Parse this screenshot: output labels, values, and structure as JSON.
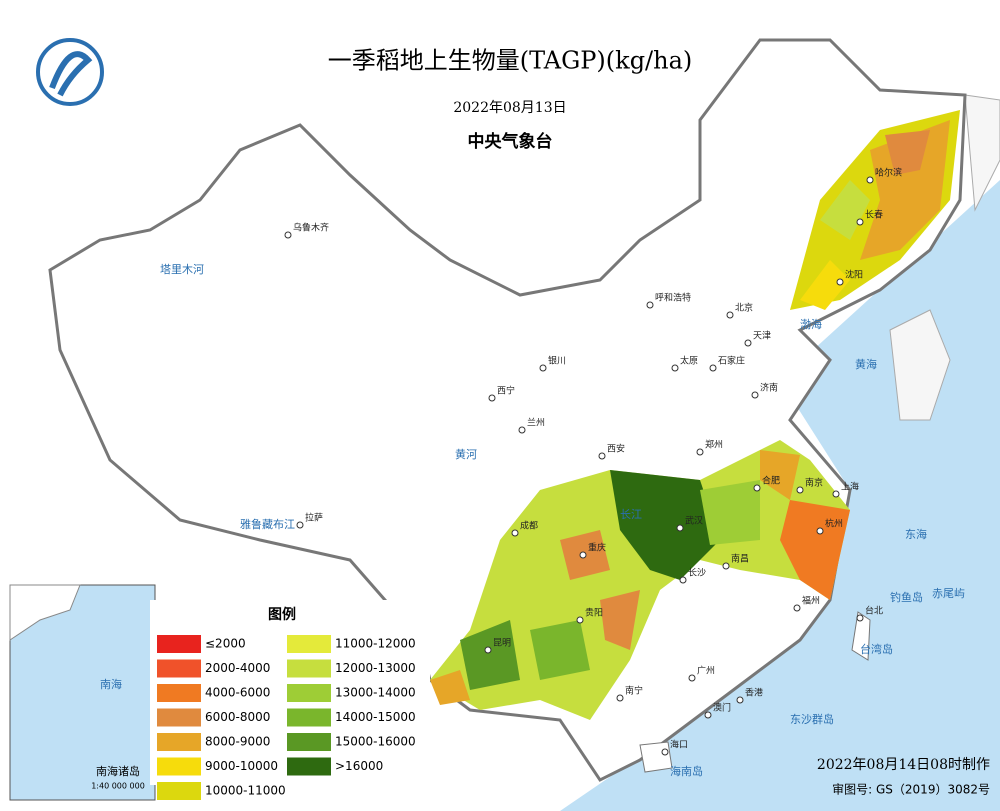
{
  "header": {
    "title": "一季稻地上生物量(TAGP)(kg/ha)",
    "date": "2022年08月13日",
    "issuer": "中央气象台"
  },
  "legend": {
    "title": "图例",
    "items": [
      {
        "label": "≤2000",
        "color": "#e8231e"
      },
      {
        "label": "2000-4000",
        "color": "#f0522a"
      },
      {
        "label": "4000-6000",
        "color": "#f07a22"
      },
      {
        "label": "6000-8000",
        "color": "#e08a3e"
      },
      {
        "label": "8000-9000",
        "color": "#e6a628"
      },
      {
        "label": "9000-10000",
        "color": "#f6dc0c"
      },
      {
        "label": "10000-11000",
        "color": "#dcd80e"
      },
      {
        "label": "11000-12000",
        "color": "#e4ea3a"
      },
      {
        "label": "12000-13000",
        "color": "#c6de3e"
      },
      {
        "label": "13000-14000",
        "color": "#9ecd36"
      },
      {
        "label": "14000-15000",
        "color": "#7ab62c"
      },
      {
        "label": "15000-16000",
        "color": "#5a9824"
      },
      {
        "label": ">16000",
        "color": "#2e6a10"
      }
    ]
  },
  "cities": [
    "乌鲁木齐",
    "哈尔滨",
    "长春",
    "沈阳",
    "呼和浩特",
    "北京",
    "天津",
    "银川",
    "太原",
    "石家庄",
    "济南",
    "西宁",
    "兰州",
    "郑州",
    "西安",
    "合肥",
    "南京",
    "上海",
    "成都",
    "武汉",
    "杭州",
    "重庆",
    "长沙",
    "南昌",
    "贵阳",
    "福州",
    "拉萨",
    "昆明",
    "广州",
    "南宁",
    "香港",
    "澳门",
    "台北",
    "海口"
  ],
  "labels": [
    "渤海",
    "黄海",
    "东海",
    "南海",
    "台湾岛",
    "钓鱼岛",
    "赤尾屿",
    "东沙群岛",
    "海南岛",
    "塔里木河",
    "雅鲁藏布江",
    "黄河",
    "长江"
  ],
  "inset": {
    "title": "南海诸岛",
    "scale": "1:40 000 000"
  },
  "footer": {
    "made": "2022年08月14日08时制作",
    "approval": "审图号: GS（2019）3082号"
  }
}
